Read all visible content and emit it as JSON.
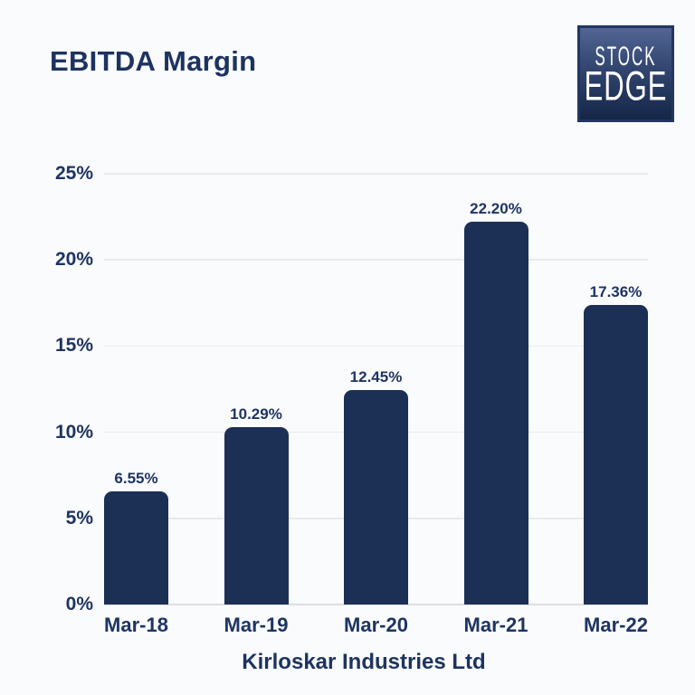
{
  "header": {
    "title": "EBITDA Margin"
  },
  "logo": {
    "line1": "STOCK",
    "line2": "EDGE"
  },
  "chart_data": {
    "type": "bar",
    "title": "EBITDA Margin",
    "categories": [
      "Mar-18",
      "Mar-19",
      "Mar-20",
      "Mar-21",
      "Mar-22"
    ],
    "values": [
      6.55,
      10.29,
      12.45,
      22.2,
      17.36
    ],
    "value_labels": [
      "6.55%",
      "10.29%",
      "12.45%",
      "22.20%",
      "17.36%"
    ],
    "y_ticks": [
      {
        "value": 0,
        "label": "0%"
      },
      {
        "value": 5,
        "label": "5%"
      },
      {
        "value": 10,
        "label": "10%"
      },
      {
        "value": 15,
        "label": "15%"
      },
      {
        "value": 20,
        "label": "20%"
      },
      {
        "value": 25,
        "label": "25%"
      }
    ],
    "ylim": [
      0,
      25
    ],
    "xlabel": "Kirloskar Industries Ltd",
    "ylabel": "",
    "grid": true,
    "legend": "none",
    "bar_color": "#1c2f55",
    "background_color": "#fafbfc",
    "text_color": "#1e3462"
  },
  "footer": {
    "company": "Kirloskar Industries Ltd"
  }
}
